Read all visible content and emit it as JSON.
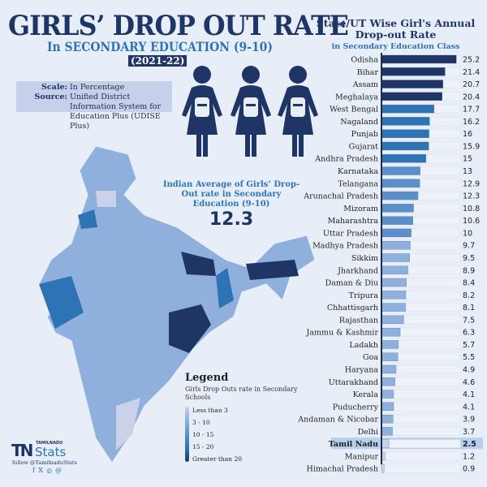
{
  "header": {
    "title": "GIRLS’ DROP OUT RATE",
    "subtitle": "In SECONDARY EDUCATION (9-10)",
    "year": "(2021-22)"
  },
  "info": {
    "scale_label": "Scale:",
    "scale_value": "In Percentage",
    "source_label": "Source:",
    "source_value": "Unified District Information System for Education Plus (UDISE Plus)"
  },
  "average": {
    "label": "Indian Average of Girls’ Drop-Out rate in Secondary Education (9-10)",
    "value": "12.3"
  },
  "legend": {
    "title": "Legend",
    "desc": "Girls Drop Outs rate in Secondary Schools",
    "items": [
      "Less than 3",
      "3 - 10",
      "10 - 15",
      "15 - 20",
      "Greater than 20"
    ],
    "colors": [
      "#c9d2e8",
      "#8fb0dc",
      "#5b8fc9",
      "#2e74b5",
      "#1f3566"
    ]
  },
  "brand": {
    "small": "TAMILNADU",
    "logo": "TN",
    "big": "Stats",
    "follow": "follow @TamilnaduStats",
    "social_icons": [
      "facebook-icon",
      "x-icon",
      "instagram-icon",
      "threads-icon"
    ]
  },
  "chart_data": {
    "type": "bar",
    "orientation": "horizontal",
    "title": "State/UT Wise Girl's Annual Drop-out Rate",
    "subtitle": "in Secondary Education Class",
    "highlight": "Tamil Nadu",
    "xlim": [
      0,
      26.5
    ],
    "categories": [
      "Odisha",
      "Bihar",
      "Assam",
      "Meghalaya",
      "West Bengal",
      "Nagaland",
      "Punjab",
      "Gujarat",
      "Andhra Pradesh",
      "Karnataka",
      "Telangana",
      "Arunachal Pradesh",
      "Mizoram",
      "Maharashtra",
      "Uttar Pradesh",
      "Madhya Pradesh",
      "Sikkim",
      "Jharkhand",
      "Daman & Diu",
      "Tripura",
      "Chhattisgarh",
      "Rajasthan",
      "Jammu & Kashmir",
      "Ladakh",
      "Goa",
      "Haryana",
      "Uttarakhand",
      "Kerala",
      "Puducherry",
      "Andaman & Nicobar",
      "Delhi",
      "Tamil Nadu",
      "Manipur",
      "Himachal Pradesh"
    ],
    "values": [
      25.2,
      21.4,
      20.7,
      20.4,
      17.7,
      16.2,
      16,
      15.9,
      15,
      13,
      12.9,
      12.3,
      10.8,
      10.6,
      10,
      9.7,
      9.5,
      8.9,
      8.4,
      8.2,
      8.1,
      7.5,
      6.3,
      5.7,
      5.5,
      4.9,
      4.6,
      4.1,
      4.1,
      3.9,
      3.7,
      2.5,
      1.2,
      0.9
    ],
    "labels": [
      "25.2",
      "21.4",
      "20.7",
      "20.4",
      "17.7",
      "16.2",
      "16",
      "15.9",
      "15",
      "13",
      "12.9",
      "12.3",
      "10.8",
      "10.6",
      "10",
      "9.7",
      "9.5",
      "8.9",
      "8.4",
      "8.2",
      "8.1",
      "7.5",
      "6.3",
      "5.7",
      "5.5",
      "4.9",
      "4.6",
      "4.1",
      "4.1",
      "3.9",
      "3.7",
      "2.5",
      "1.2",
      "0.9"
    ]
  }
}
